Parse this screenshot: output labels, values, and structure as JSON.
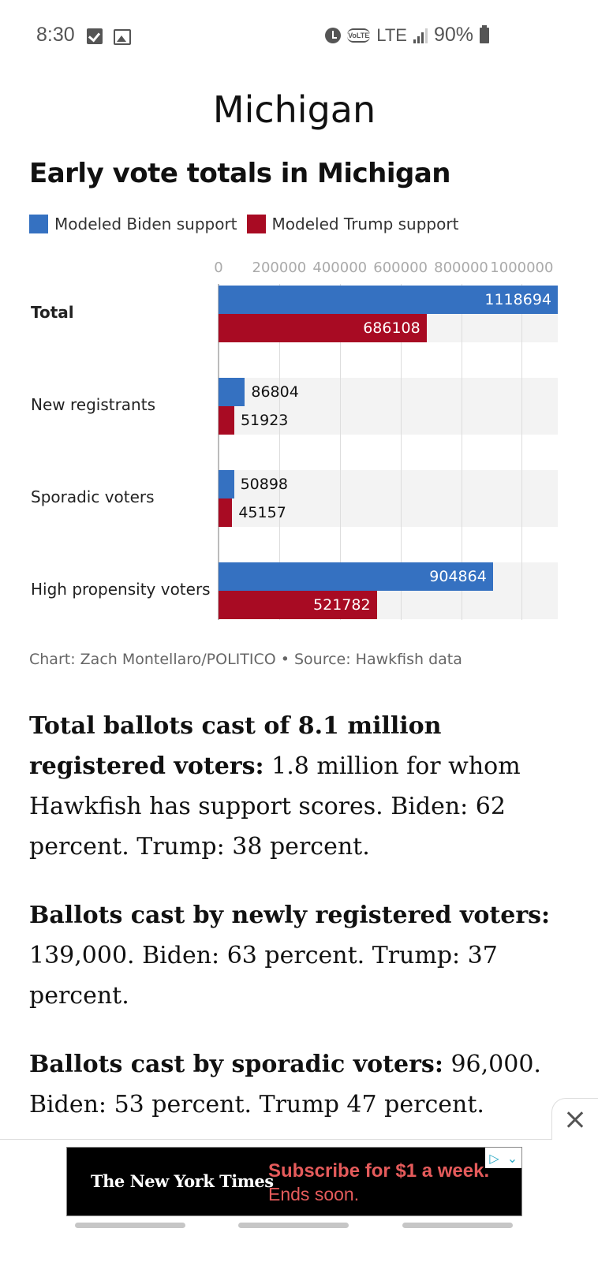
{
  "status_bar": {
    "time": "8:30",
    "left_icons": [
      "checkbox-notification-icon",
      "image-notification-icon"
    ],
    "right_icons": [
      "alarm-icon",
      "volte-icon",
      "signal-icon",
      "battery-icon"
    ],
    "volte": "VoLTE",
    "network": "LTE",
    "battery": "90%"
  },
  "page": {
    "title": "Michigan"
  },
  "chart_data": {
    "type": "bar",
    "orientation": "horizontal",
    "title": "Early vote totals in Michigan",
    "categories": [
      "Total",
      "New registrants",
      "Sporadic voters",
      "High propensity voters"
    ],
    "bold_categories": [
      "Total"
    ],
    "series": [
      {
        "name": "Modeled Biden support",
        "color": "#3571c1",
        "values": [
          1118694,
          86804,
          50898,
          904864
        ]
      },
      {
        "name": "Modeled Trump support",
        "color": "#a80b23",
        "values": [
          686108,
          51923,
          45157,
          521782
        ]
      }
    ],
    "x_ticks": [
      "0",
      "200000",
      "400000",
      "600000",
      "800000",
      "1000000"
    ],
    "x_tick_values": [
      0,
      200000,
      400000,
      600000,
      800000,
      1000000
    ],
    "xlim": [
      0,
      1118694
    ],
    "xlabel": "",
    "ylabel": "",
    "grid": true,
    "legend": "top-left",
    "axis_position": "top"
  },
  "credit": "Chart: Zach Montellaro/POLITICO • Source: Hawkfish data",
  "article": {
    "paragraphs": [
      {
        "bold": "Total ballots cast of 8.1 million registered voters:",
        "text": " 1.8 million for whom Hawkfish has support scores. Biden: 62 percent. Trump: 38 percent."
      },
      {
        "bold": "Ballots cast by newly registered voters:",
        "text": " 139,000. Biden: 63 percent. Trump: 37 percent."
      },
      {
        "bold": "Ballots cast by sporadic voters:",
        "text": " 96,000. Biden: 53 percent. Trump 47 percent."
      }
    ]
  },
  "ad": {
    "brand": "The New York Times",
    "line1": "Subscribe for $1 a week.",
    "line2": "Ends soon.",
    "adchoices_icon": "ad-choices-icon",
    "collapse_icon": "chevron-down-icon",
    "close_icon": "close-icon"
  }
}
